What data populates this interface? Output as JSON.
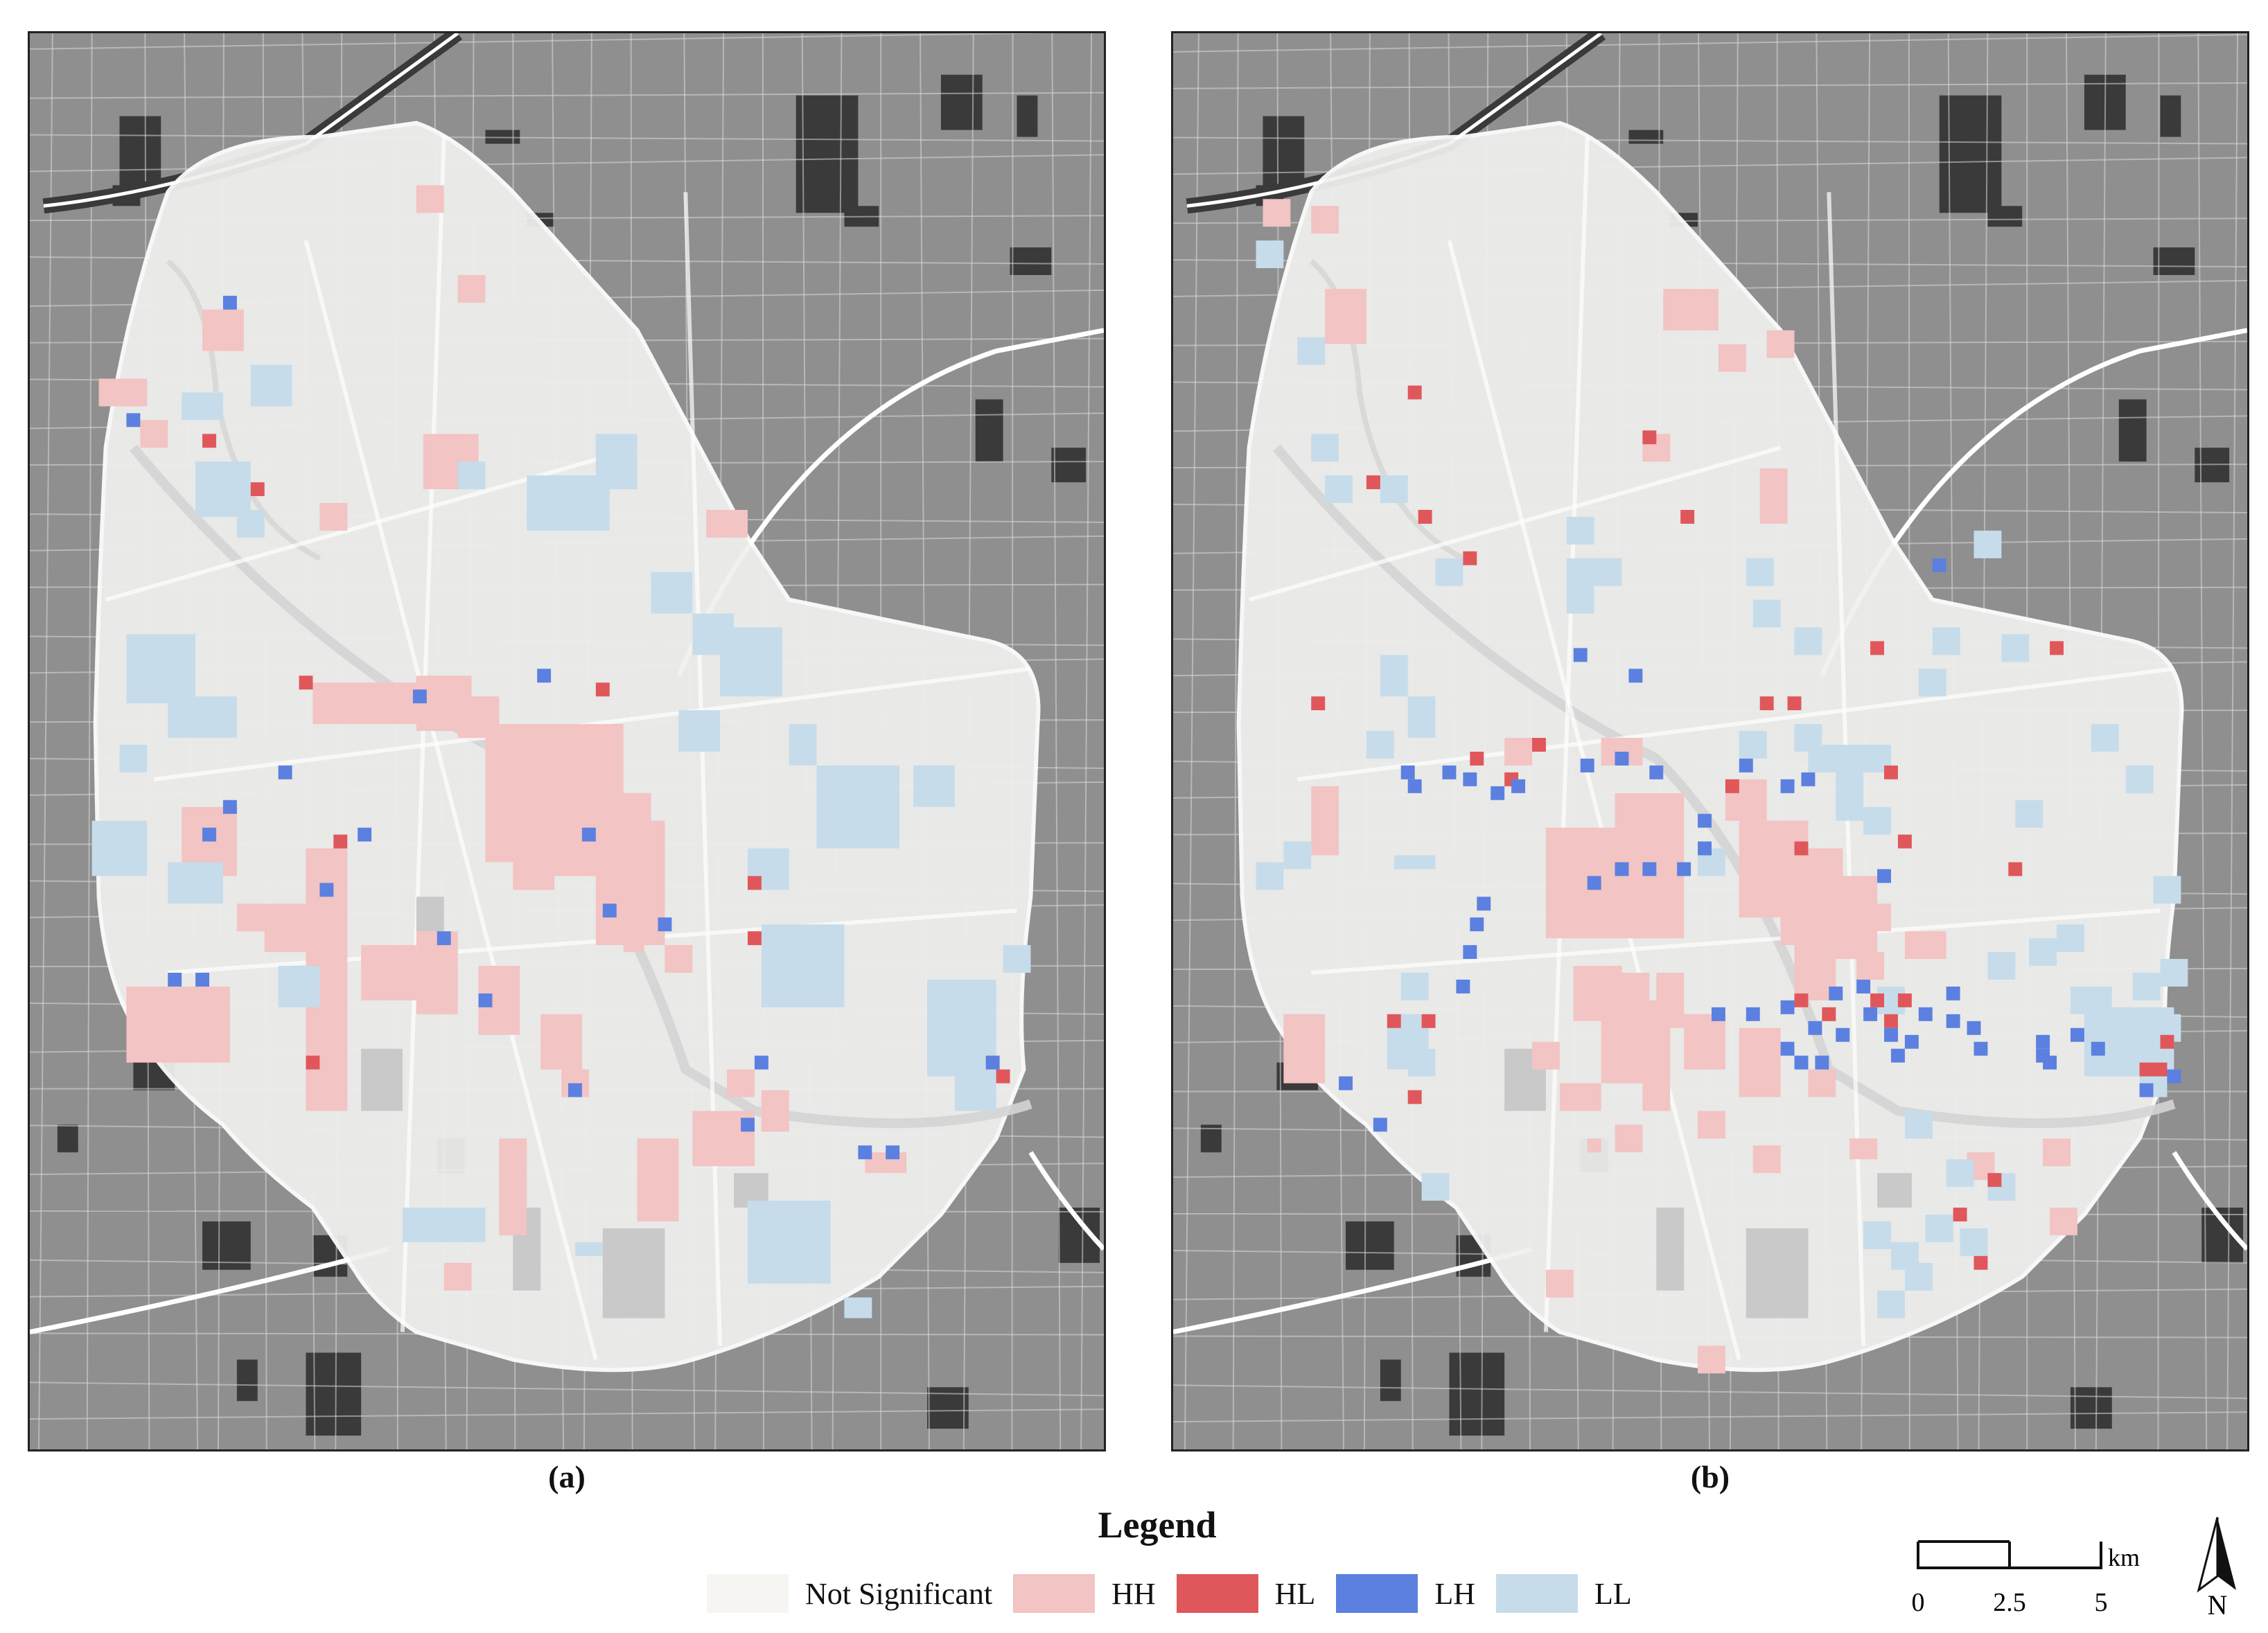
{
  "panels": [
    {
      "id": "a",
      "label": "(a)"
    },
    {
      "id": "b",
      "label": "(b)"
    }
  ],
  "legend": {
    "title": "Legend",
    "items": [
      {
        "key": "ns",
        "label": "Not Significant",
        "color": "#f6f5f1"
      },
      {
        "key": "hh",
        "label": "HH",
        "color": "#f2c4c3"
      },
      {
        "key": "hl",
        "label": "HL",
        "color": "#e0575b"
      },
      {
        "key": "lh",
        "label": "LH",
        "color": "#5b80e0"
      },
      {
        "key": "ll",
        "label": "LL",
        "color": "#c6dcea"
      }
    ]
  },
  "scalebar": {
    "ticks": [
      "0",
      "2.5",
      "5"
    ],
    "unit": "km"
  },
  "north_arrow": {
    "label": "N"
  },
  "colors": {
    "background": "#8f8f8f",
    "blocks": "#3a3a3a",
    "roads": "#ffffff",
    "study_area": "#f0f0ee"
  }
}
